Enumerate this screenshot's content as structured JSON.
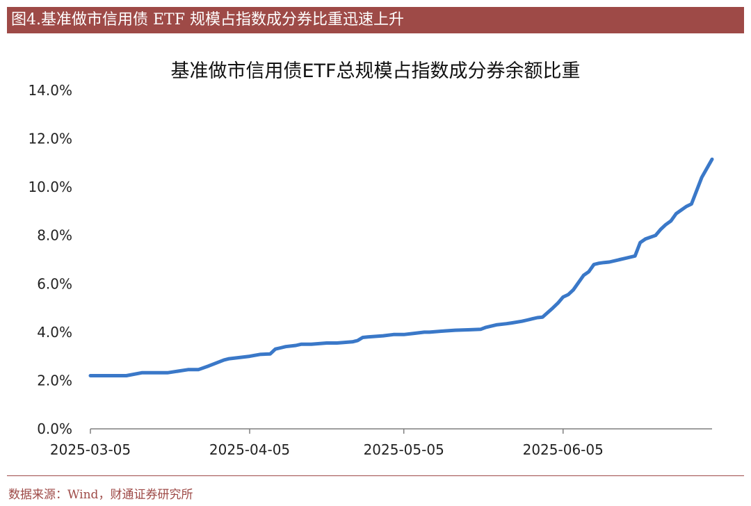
{
  "banner": {
    "title": "图4.基准做市信用债 ETF 规模占指数成分券比重迅速上升"
  },
  "source": "数据来源：Wind，财通证券研究所",
  "colors": {
    "banner": "#9e4a47",
    "line": "#3a78c8",
    "axis": "#7f7f7f"
  },
  "chart_data": {
    "type": "line",
    "title": "基准做市信用债ETF总规模占指数成分券余额比重",
    "xlabel": "",
    "ylabel": "",
    "ylim": [
      0,
      14
    ],
    "y_ticks": [
      "0.0%",
      "2.0%",
      "4.0%",
      "6.0%",
      "8.0%",
      "10.0%",
      "12.0%",
      "14.0%"
    ],
    "x_ticks": [
      "2025-03-05",
      "2025-04-05",
      "2025-05-05",
      "2025-06-05"
    ],
    "x_range": [
      "2025-03-05",
      "2025-07-04"
    ],
    "grid": false,
    "legend": "none",
    "series": [
      {
        "x": [
          "2025-03-05",
          "2025-03-12",
          "2025-03-15",
          "2025-03-17",
          "2025-03-18",
          "2025-03-20",
          "2025-03-24",
          "2025-03-26",
          "2025-03-28",
          "2025-03-31",
          "2025-04-01",
          "2025-04-03",
          "2025-04-05",
          "2025-04-07",
          "2025-04-09",
          "2025-04-10",
          "2025-04-11",
          "2025-04-12",
          "2025-04-14",
          "2025-04-15",
          "2025-04-17",
          "2025-04-20",
          "2025-04-22",
          "2025-04-25",
          "2025-04-26",
          "2025-04-27",
          "2025-04-28",
          "2025-05-01",
          "2025-05-03",
          "2025-05-05",
          "2025-05-07",
          "2025-05-09",
          "2025-05-10",
          "2025-05-13",
          "2025-05-15",
          "2025-05-18",
          "2025-05-20",
          "2025-05-21",
          "2025-05-23",
          "2025-05-25",
          "2025-05-26",
          "2025-05-28",
          "2025-05-29",
          "2025-05-30",
          "2025-05-31",
          "2025-06-01",
          "2025-06-03",
          "2025-06-04",
          "2025-06-05",
          "2025-06-06",
          "2025-06-07",
          "2025-06-09",
          "2025-06-10",
          "2025-06-11",
          "2025-06-12",
          "2025-06-13",
          "2025-06-14",
          "2025-06-17",
          "2025-06-19",
          "2025-06-20",
          "2025-06-21",
          "2025-06-23",
          "2025-06-24",
          "2025-06-25",
          "2025-06-26",
          "2025-06-27",
          "2025-06-28",
          "2025-06-29",
          "2025-06-30",
          "2025-07-02",
          "2025-07-04"
        ],
        "values": [
          2.2,
          2.2,
          2.32,
          2.32,
          2.32,
          2.32,
          2.45,
          2.45,
          2.6,
          2.85,
          2.9,
          2.95,
          3.0,
          3.08,
          3.1,
          3.3,
          3.35,
          3.4,
          3.45,
          3.5,
          3.5,
          3.55,
          3.55,
          3.6,
          3.65,
          3.78,
          3.8,
          3.85,
          3.9,
          3.9,
          3.95,
          4.0,
          4.0,
          4.05,
          4.08,
          4.1,
          4.12,
          4.2,
          4.3,
          4.35,
          4.38,
          4.45,
          4.5,
          4.55,
          4.6,
          4.62,
          5.0,
          5.2,
          5.45,
          5.55,
          5.75,
          6.35,
          6.5,
          6.8,
          6.85,
          6.88,
          6.9,
          7.05,
          7.15,
          7.7,
          7.85,
          8.0,
          8.25,
          8.45,
          8.6,
          8.9,
          9.05,
          9.2,
          9.3,
          10.4,
          11.15
        ]
      }
    ]
  }
}
